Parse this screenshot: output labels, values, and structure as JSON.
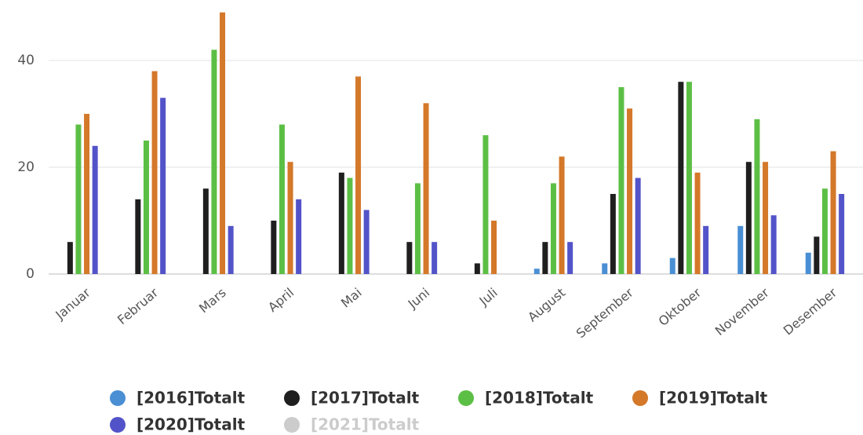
{
  "chart_data": {
    "type": "bar",
    "categories": [
      "Januar",
      "Februar",
      "Mars",
      "April",
      "Mai",
      "Juni",
      "Juli",
      "August",
      "September",
      "Oktober",
      "November",
      "Desember"
    ],
    "series": [
      {
        "name": "[2016]Totalt",
        "color": "#4a8fd4",
        "values": [
          0,
          0,
          0,
          0,
          0,
          0,
          0,
          1,
          2,
          3,
          9,
          4
        ]
      },
      {
        "name": "[2017]Totalt",
        "color": "#1f1f1f",
        "values": [
          6,
          14,
          16,
          10,
          19,
          6,
          2,
          6,
          15,
          36,
          21,
          7
        ]
      },
      {
        "name": "[2018]Totalt",
        "color": "#5cbf45",
        "values": [
          28,
          25,
          42,
          28,
          18,
          17,
          26,
          17,
          35,
          36,
          29,
          16
        ]
      },
      {
        "name": "[2019]Totalt",
        "color": "#d4782a",
        "values": [
          30,
          38,
          49,
          21,
          37,
          32,
          10,
          22,
          31,
          19,
          21,
          23
        ]
      },
      {
        "name": "[2020]Totalt",
        "color": "#5353c9",
        "values": [
          24,
          33,
          9,
          14,
          12,
          6,
          0,
          6,
          18,
          9,
          11,
          15
        ]
      },
      {
        "name": "[2021]Totalt",
        "color": "#cccccc",
        "hidden": true,
        "values": [
          null,
          null,
          null,
          null,
          null,
          null,
          null,
          null,
          null,
          null,
          null,
          null
        ]
      }
    ],
    "ylim": [
      0,
      50
    ],
    "yticks": [
      0,
      20,
      40
    ],
    "grid": true
  }
}
